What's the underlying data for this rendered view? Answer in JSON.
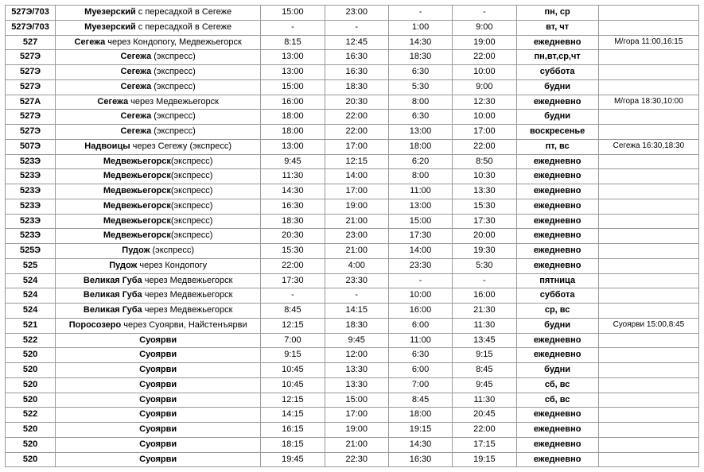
{
  "schedule": {
    "rows": [
      {
        "route": "527Э/703",
        "dest_main": "Муезерский",
        "dest_sub": " с пересадкой в Сегеже",
        "t1": "15:00",
        "t2": "23:00",
        "t3": "-",
        "t4": "-",
        "days": "пн, ср",
        "note": ""
      },
      {
        "route": "527Э/703",
        "dest_main": "Муезерский",
        "dest_sub": " с пересадкой в Сегеже",
        "t1": "-",
        "t2": "-",
        "t3": "1:00",
        "t4": "9:00",
        "days": "вт, чт",
        "note": ""
      },
      {
        "route": "527",
        "dest_main": "Сегежа",
        "dest_sub": " через Кондопогу, Медвежьегорск",
        "t1": "8:15",
        "t2": "12:45",
        "t3": "14:30",
        "t4": "19:00",
        "days": "ежедневно",
        "note": "М/гора 11:00,16:15"
      },
      {
        "route": "527Э",
        "dest_main": "Сегежа",
        "dest_sub": " (экспресс)",
        "t1": "13:00",
        "t2": "16:30",
        "t3": "18:30",
        "t4": "22:00",
        "days": "пн,вт,ср,чт",
        "note": ""
      },
      {
        "route": "527Э",
        "dest_main": "Сегежа",
        "dest_sub": " (экспресс)",
        "t1": "13:00",
        "t2": "16:30",
        "t3": "6:30",
        "t4": "10:00",
        "days": "суббота",
        "note": ""
      },
      {
        "route": "527Э",
        "dest_main": "Сегежа",
        "dest_sub": " (экспресс)",
        "t1": "15:00",
        "t2": "18:30",
        "t3": "5:30",
        "t4": "9:00",
        "days": "будни",
        "note": ""
      },
      {
        "route": "527А",
        "dest_main": "Сегежа",
        "dest_sub": " через Медвежьегорск",
        "t1": "16:00",
        "t2": "20:30",
        "t3": "8:00",
        "t4": "12:30",
        "days": "ежедневно",
        "note": "М/гора 18:30,10:00"
      },
      {
        "route": "527Э",
        "dest_main": "Сегежа",
        "dest_sub": " (экспресс)",
        "t1": "18:00",
        "t2": "22:00",
        "t3": "6:30",
        "t4": "10:00",
        "days": "будни",
        "note": ""
      },
      {
        "route": "527Э",
        "dest_main": "Сегежа",
        "dest_sub": " (экспресс)",
        "t1": "18:00",
        "t2": "22:00",
        "t3": "13:00",
        "t4": "17:00",
        "days": "воскресенье",
        "note": ""
      },
      {
        "route": "507Э",
        "dest_main": "Надвоицы",
        "dest_sub": " через Сегежу (экспресс)",
        "t1": "13:00",
        "t2": "17:00",
        "t3": "18:00",
        "t4": "22:00",
        "days": "пт, вс",
        "note": "Сегежа 16:30,18:30"
      },
      {
        "route": "523Э",
        "dest_main": "Медвежьегорск",
        "dest_sub": "(экспресс)",
        "t1": "9:45",
        "t2": "12:15",
        "t3": "6:20",
        "t4": "8:50",
        "days": "ежедневно",
        "note": ""
      },
      {
        "route": "523Э",
        "dest_main": "Медвежьегорск",
        "dest_sub": "(экспресс)",
        "t1": "11:30",
        "t2": "14:00",
        "t3": "8:00",
        "t4": "10:30",
        "days": "ежедневно",
        "note": ""
      },
      {
        "route": "523Э",
        "dest_main": "Медвежьегорск",
        "dest_sub": "(экспресс)",
        "t1": "14:30",
        "t2": "17:00",
        "t3": "11:00",
        "t4": "13:30",
        "days": "ежедневно",
        "note": ""
      },
      {
        "route": "523Э",
        "dest_main": "Медвежьегорск",
        "dest_sub": "(экспресс)",
        "t1": "16:30",
        "t2": "19:00",
        "t3": "13:00",
        "t4": "15:30",
        "days": "ежедневно",
        "note": ""
      },
      {
        "route": "523Э",
        "dest_main": "Медвежьегорск",
        "dest_sub": "(экспресс)",
        "t1": "18:30",
        "t2": "21:00",
        "t3": "15:00",
        "t4": "17:30",
        "days": "ежедневно",
        "note": ""
      },
      {
        "route": "523Э",
        "dest_main": "Медвежьегорск",
        "dest_sub": "(экспресс)",
        "t1": "20:30",
        "t2": "23:00",
        "t3": "17:30",
        "t4": "20:00",
        "days": "ежедневно",
        "note": ""
      },
      {
        "route": "525Э",
        "dest_main": "Пудож",
        "dest_sub": " (экспресс)",
        "t1": "15:30",
        "t2": "21:00",
        "t3": "14:00",
        "t4": "19:30",
        "days": "ежедневно",
        "note": ""
      },
      {
        "route": "525",
        "dest_main": "Пудож",
        "dest_sub": " через Кондопогу",
        "t1": "22:00",
        "t2": "4:00",
        "t3": "23:30",
        "t4": "5:30",
        "days": "ежедневно",
        "note": ""
      },
      {
        "route": "524",
        "dest_main": "Великая Губа",
        "dest_sub": " через Медвежьегорск",
        "t1": "17:30",
        "t2": "23:30",
        "t3": "-",
        "t4": "-",
        "days": "пятница",
        "note": ""
      },
      {
        "route": "524",
        "dest_main": "Великая Губа",
        "dest_sub": " через Медвежьегорск",
        "t1": "-",
        "t2": "-",
        "t3": "10:00",
        "t4": "16:00",
        "days": "суббота",
        "note": ""
      },
      {
        "route": "524",
        "dest_main": "Великая Губа",
        "dest_sub": " через Медвежьегорск",
        "t1": "8:45",
        "t2": "14:15",
        "t3": "16:00",
        "t4": "21:30",
        "days": "ср, вс",
        "note": ""
      },
      {
        "route": "521",
        "dest_main": "Поросозеро",
        "dest_sub": " через Суоярви, Найстенъярви",
        "t1": "12:15",
        "t2": "18:30",
        "t3": "6:00",
        "t4": "11:30",
        "days": "будни",
        "note": "Суоярви 15:00,8:45"
      },
      {
        "route": "522",
        "dest_main": "Суоярви",
        "dest_sub": "",
        "t1": "7:00",
        "t2": "9:45",
        "t3": "11:00",
        "t4": "13:45",
        "days": "ежедневно",
        "note": ""
      },
      {
        "route": "520",
        "dest_main": "Суоярви",
        "dest_sub": "",
        "t1": "9:15",
        "t2": "12:00",
        "t3": "6:30",
        "t4": "9:15",
        "days": "ежедневно",
        "note": ""
      },
      {
        "route": "520",
        "dest_main": "Суоярви",
        "dest_sub": "",
        "t1": "10:45",
        "t2": "13:30",
        "t3": "6:00",
        "t4": "8:45",
        "days": "будни",
        "note": ""
      },
      {
        "route": "520",
        "dest_main": "Суоярви",
        "dest_sub": "",
        "t1": "10:45",
        "t2": "13:30",
        "t3": "7:00",
        "t4": "9:45",
        "days": "сб, вс",
        "note": ""
      },
      {
        "route": "520",
        "dest_main": "Суоярви",
        "dest_sub": "",
        "t1": "12:15",
        "t2": "15:00",
        "t3": "8:45",
        "t4": "11:30",
        "days": "сб, вс",
        "note": ""
      },
      {
        "route": "522",
        "dest_main": "Суоярви",
        "dest_sub": "",
        "t1": "14:15",
        "t2": "17:00",
        "t3": "18:00",
        "t4": "20:45",
        "days": "ежедневно",
        "note": ""
      },
      {
        "route": "520",
        "dest_main": "Суоярви",
        "dest_sub": "",
        "t1": "16:15",
        "t2": "19:00",
        "t3": "19:15",
        "t4": "22:00",
        "days": "ежедневно",
        "note": ""
      },
      {
        "route": "520",
        "dest_main": "Суоярви",
        "dest_sub": "",
        "t1": "18:15",
        "t2": "21:00",
        "t3": "14:30",
        "t4": "17:15",
        "days": "ежедневно",
        "note": ""
      },
      {
        "route": "520",
        "dest_main": "Суоярви",
        "dest_sub": "",
        "t1": "19:45",
        "t2": "22:30",
        "t3": "16:30",
        "t4": "19:15",
        "days": "ежедневно",
        "note": ""
      }
    ]
  }
}
